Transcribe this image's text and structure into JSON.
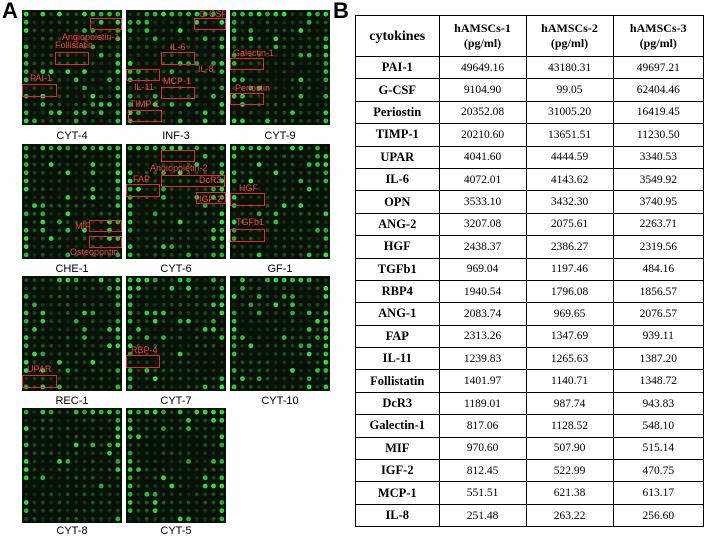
{
  "panel_a": {
    "letter": "A",
    "arrays": [
      {
        "label": "CYT-4",
        "annotations": [
          "Angiopoietin-1",
          "Follistatin",
          "PAI-1"
        ]
      },
      {
        "label": "INF-3",
        "annotations": [
          "G-CSF",
          "IL-6",
          "IL-8",
          "IL-11",
          "MCP-1",
          "TIMP-1"
        ]
      },
      {
        "label": "CYT-9",
        "annotations": [
          "Galectin-1",
          "Periostin"
        ]
      },
      {
        "label": "CHE-1",
        "annotations": [
          "MIF",
          "Osteopontin"
        ]
      },
      {
        "label": "CYT-6",
        "annotations": [
          "Angiopoietin-2",
          "FAP",
          "DcR3",
          "IGF-2"
        ]
      },
      {
        "label": "GF-1",
        "annotations": [
          "HGF",
          "TGFb1"
        ]
      },
      {
        "label": "REC-1",
        "annotations": [
          "UPAR"
        ]
      },
      {
        "label": "CYT-7",
        "annotations": [
          "RBP-4"
        ]
      },
      {
        "label": "CYT-10",
        "annotations": []
      },
      {
        "label": "CYT-8",
        "annotations": []
      },
      {
        "label": "CYT-5",
        "annotations": []
      }
    ],
    "spot_color": "#2ee83a",
    "box_color": "#e8242c",
    "annotation_color": "#ff3c3c"
  },
  "panel_b": {
    "letter": "B",
    "headers": [
      {
        "line1": "cytokines",
        "line2": ""
      },
      {
        "line1": "hAMSCs-1",
        "line2": "(pg/ml)"
      },
      {
        "line1": "hAMSCs-2",
        "line2": "(pg/ml)"
      },
      {
        "line1": "hAMSCs-3",
        "line2": "(pg/ml)"
      }
    ],
    "rows": [
      [
        "PAI-1",
        "49649.16",
        "43180.31",
        "49697.21"
      ],
      [
        "G-CSF",
        "9104.90",
        "99.05",
        "62404.46"
      ],
      [
        "Periostin",
        "20352.08",
        "31005.20",
        "16419.45"
      ],
      [
        "TIMP-1",
        "20210.60",
        "13651.51",
        "11230.50"
      ],
      [
        "UPAR",
        "4041.60",
        "4444.59",
        "3340.53"
      ],
      [
        "IL-6",
        "4072.01",
        "4143.62",
        "3549.92"
      ],
      [
        "OPN",
        "3533.10",
        "3432.30",
        "3740.95"
      ],
      [
        "ANG-2",
        "3207.08",
        "2075.61",
        "2263.71"
      ],
      [
        "HGF",
        "2438.37",
        "2386.27",
        "2319.56"
      ],
      [
        "TGFb1",
        "969.04",
        "1197.46",
        "484.16"
      ],
      [
        "RBP4",
        "1940.54",
        "1796.08",
        "1856.57"
      ],
      [
        "ANG-1",
        "2083.74",
        "969.65",
        "2076.57"
      ],
      [
        "FAP",
        "2313.26",
        "1347.69",
        "939.11"
      ],
      [
        "IL-11",
        "1239.83",
        "1265.63",
        "1387.20"
      ],
      [
        "Follistatin",
        "1401.97",
        "1140.71",
        "1348.72"
      ],
      [
        "DcR3",
        "1189.01",
        "987.74",
        "943.83"
      ],
      [
        "Galectin-1",
        "817.06",
        "1128.52",
        "548.10"
      ],
      [
        "MIF",
        "970.60",
        "507.90",
        "515.14"
      ],
      [
        "IGF-2",
        "812.45",
        "522.99",
        "470.75"
      ],
      [
        "MCP-1",
        "551.51",
        "621.38",
        "613.17"
      ],
      [
        "IL-8",
        "251.48",
        "263.22",
        "256.60"
      ]
    ]
  }
}
